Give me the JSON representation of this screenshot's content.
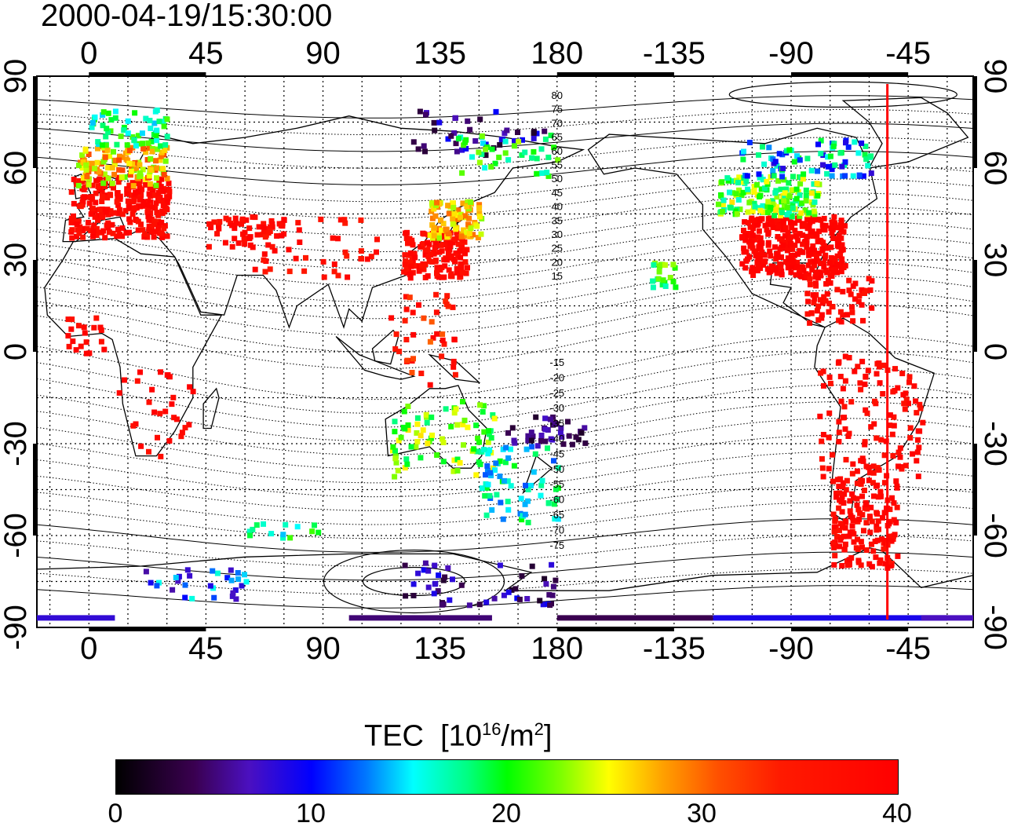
{
  "title": "2000-04-19/15:30:00",
  "lon_ticks_top": [
    "0",
    "45",
    "90",
    "135",
    "180",
    "-135",
    "-90",
    "-45"
  ],
  "lon_ticks_bottom": [
    "0",
    "45",
    "90",
    "135",
    "180",
    "-135",
    "-90",
    "-45"
  ],
  "lat_ticks": [
    "90",
    "60",
    "30",
    "0",
    "-30",
    "-60",
    "-90"
  ],
  "contour_labels_north": [
    "80",
    "75",
    "70",
    "65",
    "60",
    "55",
    "50",
    "45",
    "40",
    "35",
    "30",
    "25",
    "20",
    "15"
  ],
  "contour_labels_south": [
    "-15",
    "-20",
    "-25",
    "-30",
    "-35",
    "-40",
    "-45",
    "-50",
    "-55",
    "-60",
    "-65",
    "-70",
    "-75"
  ],
  "colorbar": {
    "title": "TEC",
    "units_prefix": "[10",
    "units_exp": "16",
    "units_mid": "/m",
    "units_exp2": "2",
    "units_suffix": "]",
    "ticks": [
      "0",
      "10",
      "20",
      "30",
      "40"
    ],
    "range": [
      0,
      40
    ]
  },
  "map_data": {
    "type": "map",
    "projection": "equirectangular",
    "lon_range": [
      -20,
      340
    ],
    "lat_range": [
      -90,
      90
    ],
    "terminator_lon": -53
  }
}
